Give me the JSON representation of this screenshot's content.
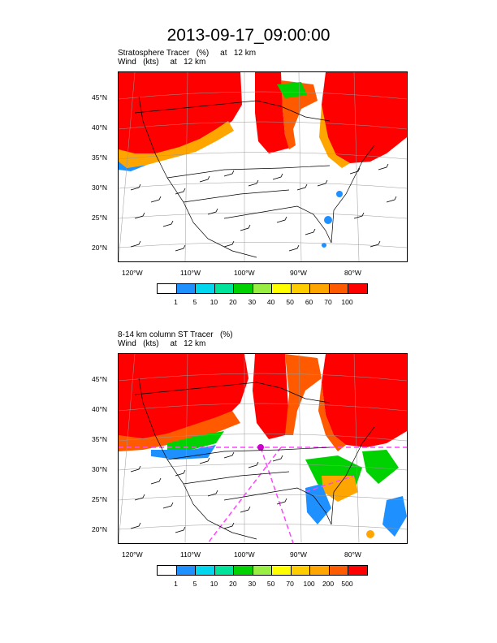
{
  "title": "2013-09-17_09:00:00",
  "panel_top": {
    "subtitle_line1": "Stratosphere Tracer   (%)     at   12 km",
    "subtitle_line2": "Wind   (kts)     at   12 km",
    "lat_labels": [
      "45°N",
      "40°N",
      "35°N",
      "30°N",
      "25°N",
      "20°N"
    ],
    "lon_labels": [
      "120°W",
      "110°W",
      "100°W",
      "90°W",
      "80°W"
    ],
    "colorbar_colors": [
      "#ffffff",
      "#1e90ff",
      "#00d7ee",
      "#00e39a",
      "#00d100",
      "#99ee44",
      "#ffff00",
      "#ffcc00",
      "#ffa500",
      "#ff5a00",
      "#ff0000"
    ],
    "colorbar_labels": [
      "1",
      "5",
      "10",
      "20",
      "30",
      "40",
      "50",
      "60",
      "70",
      "100"
    ]
  },
  "panel_bottom": {
    "subtitle_line1": "8-14 km column ST Tracer   (%)",
    "subtitle_line2": "Wind   (kts)     at   12 km",
    "lat_labels": [
      "45°N",
      "40°N",
      "35°N",
      "30°N",
      "25°N",
      "20°N"
    ],
    "lon_labels": [
      "120°W",
      "110°W",
      "100°W",
      "90°W",
      "80°W"
    ],
    "colorbar_colors": [
      "#ffffff",
      "#1e90ff",
      "#00d7ee",
      "#00e39a",
      "#00d100",
      "#99ee44",
      "#ffff00",
      "#ffcc00",
      "#ffa500",
      "#ff5a00",
      "#ff0000"
    ],
    "colorbar_labels": [
      "1",
      "5",
      "10",
      "20",
      "30",
      "50",
      "70",
      "100",
      "200",
      "500"
    ]
  },
  "map_style": {
    "high_color": "#ff0000",
    "mid_color": "#ff5a00",
    "edge_color": "#ffa500",
    "low_color": "#1e90ff",
    "green_color": "#00d100",
    "magenta_color": "#ff44ff"
  }
}
